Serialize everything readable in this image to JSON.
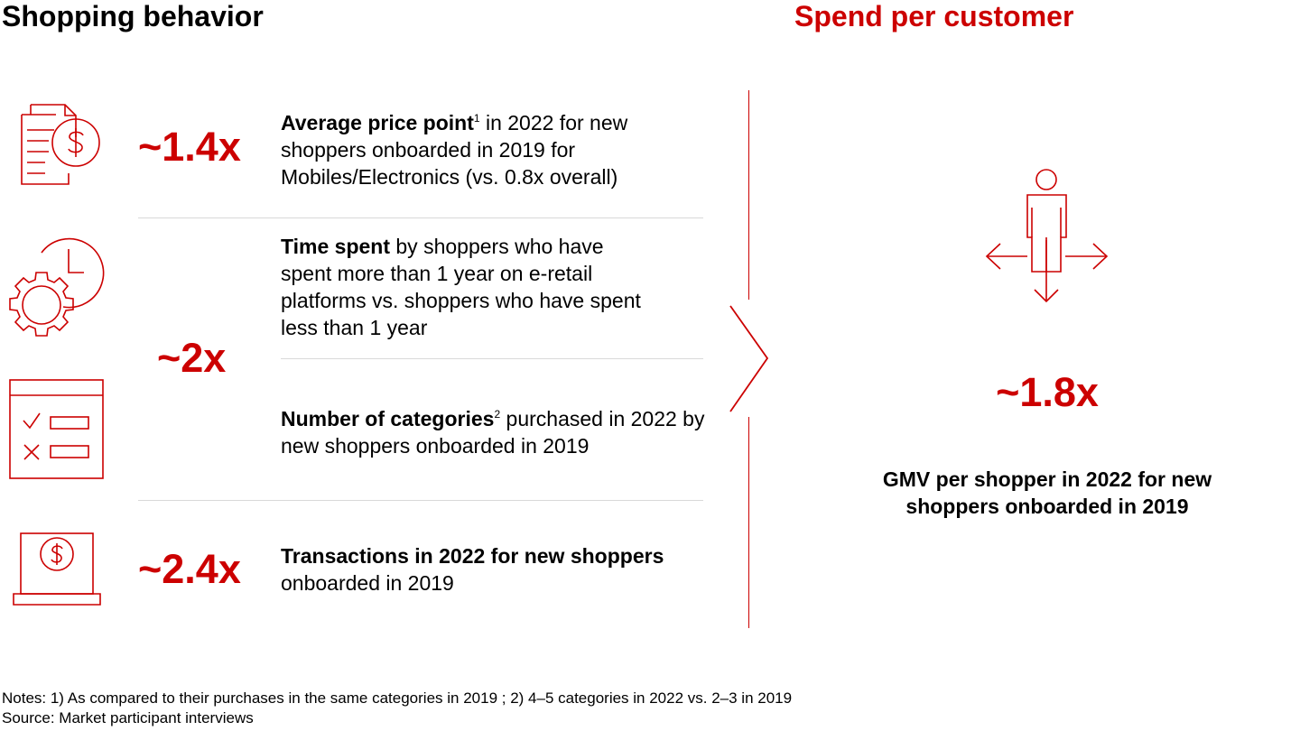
{
  "header": {
    "left_title": "Shopping behavior",
    "right_title": "Spend per customer"
  },
  "metrics": [
    {
      "multiplier": "~1.4x",
      "icon": "invoice-dollar-icon",
      "bold": "Average price point",
      "sup": "1",
      "rest": " in 2022 for new shoppers onboarded in 2019 for Mobiles/Electronics (vs. 0.8x overall)"
    },
    {
      "multiplier": "~2x",
      "icon": "clock-gear-icon",
      "bold": "Time spent",
      "sup": "",
      "rest": " by shoppers who have spent more than 1 year on e-retail platforms vs. shoppers who have spent less than 1 year"
    },
    {
      "multiplier": "",
      "icon": "checklist-icon",
      "bold": "Number of categories",
      "sup": "2",
      "rest": " purchased in 2022 by new shoppers onboarded in 2019"
    },
    {
      "multiplier": "~2.4x",
      "icon": "laptop-dollar-icon",
      "bold": "Transactions in 2022 for new shoppers",
      "sup": "",
      "rest": " onboarded in 2019"
    }
  ],
  "spend": {
    "icon": "person-arrows-icon",
    "multiplier": "~1.8x",
    "description": "GMV per shopper in 2022 for new shoppers onboarded in 2019"
  },
  "footer": {
    "notes": "Notes: 1) As compared to their purchases in the same categories in 2019 ; 2) 4–5 categories in 2022 vs. 2–3 in 2019",
    "source": "Source: Market participant interviews"
  },
  "colors": {
    "accent": "#cc0000",
    "divider": "#d9d9d9",
    "text": "#000000"
  }
}
